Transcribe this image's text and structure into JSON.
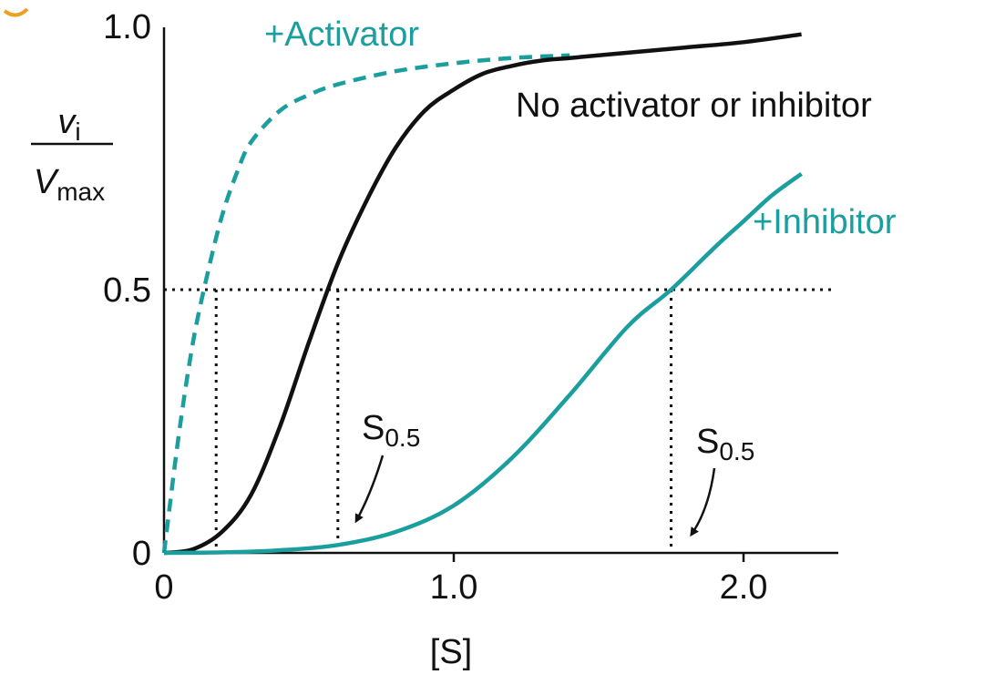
{
  "chart_data": {
    "type": "line",
    "xlabel": "[S]",
    "ylabel": {
      "numerator": "v",
      "numerator_sub": "i",
      "denominator": "V",
      "denominator_sub": "max"
    },
    "xlim": [
      0,
      2.3
    ],
    "ylim": [
      0,
      1.0
    ],
    "x_ticks": [
      {
        "value": 0,
        "label": "0"
      },
      {
        "value": 1.0,
        "label": "1.0"
      },
      {
        "value": 2.0,
        "label": "2.0"
      }
    ],
    "y_ticks": [
      {
        "value": 0,
        "label": "0"
      },
      {
        "value": 0.5,
        "label": "0.5"
      },
      {
        "value": 1.0,
        "label": "1.0"
      }
    ],
    "grid": false,
    "colors": {
      "teal": "#1a9e9e",
      "black": "#111111"
    },
    "series": [
      {
        "name": "+Activator",
        "color": "#1a9e9e",
        "dash": true,
        "x": [
          0,
          0.05,
          0.1,
          0.15,
          0.2,
          0.25,
          0.3,
          0.4,
          0.5,
          0.6,
          0.8,
          1.0,
          1.2,
          1.4
        ],
        "y": [
          0,
          0.22,
          0.4,
          0.53,
          0.64,
          0.72,
          0.78,
          0.84,
          0.87,
          0.89,
          0.915,
          0.93,
          0.94,
          0.945
        ]
      },
      {
        "name": "No activator or inhibitor",
        "color": "#111111",
        "dash": false,
        "x": [
          0,
          0.1,
          0.2,
          0.3,
          0.4,
          0.5,
          0.6,
          0.7,
          0.8,
          0.9,
          1.0,
          1.1,
          1.2,
          1.3,
          1.4,
          1.6,
          1.8,
          2.0,
          2.2
        ],
        "y": [
          0,
          0.007,
          0.04,
          0.11,
          0.24,
          0.4,
          0.55,
          0.67,
          0.77,
          0.84,
          0.88,
          0.91,
          0.925,
          0.935,
          0.94,
          0.95,
          0.96,
          0.97,
          0.985
        ]
      },
      {
        "name": "+Inhibitor",
        "color": "#1a9e9e",
        "dash": false,
        "x": [
          0,
          0.2,
          0.4,
          0.6,
          0.8,
          1.0,
          1.2,
          1.4,
          1.6,
          1.75,
          1.9,
          2.0,
          2.1,
          2.2
        ],
        "y": [
          0,
          0.001,
          0.005,
          0.015,
          0.04,
          0.09,
          0.18,
          0.3,
          0.43,
          0.5,
          0.58,
          0.63,
          0.68,
          0.72
        ]
      }
    ],
    "annotations": {
      "half_level": 0.5,
      "half_x": [
        0.18,
        0.6,
        1.75
      ],
      "s05_base": "S",
      "s05_sub": "0.5"
    }
  }
}
